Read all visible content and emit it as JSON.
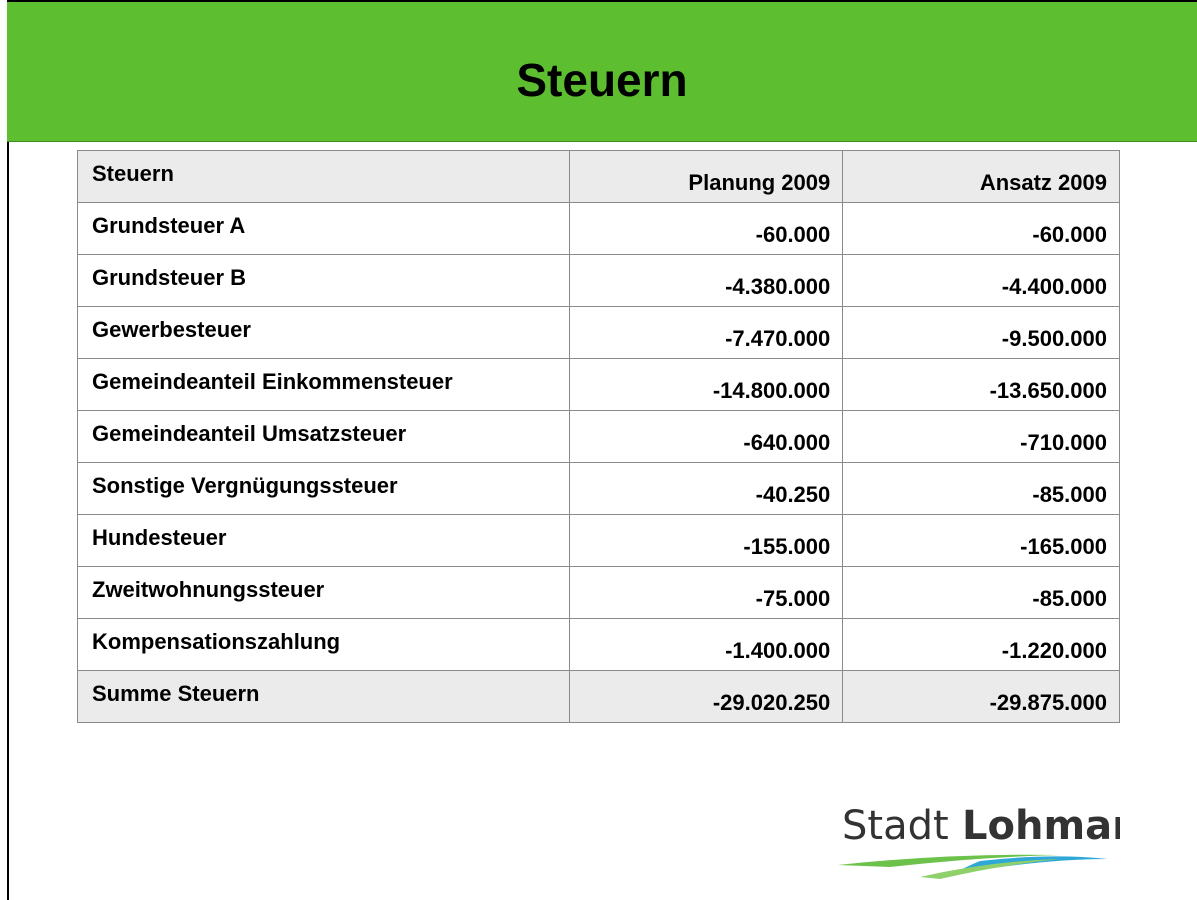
{
  "header": {
    "title": "Steuern"
  },
  "table": {
    "columns": [
      "Steuern",
      "Planung 2009",
      "Ansatz 2009"
    ],
    "rows": [
      [
        "Grundsteuer A",
        "-60.000",
        "-60.000"
      ],
      [
        "Grundsteuer B",
        "-4.380.000",
        "-4.400.000"
      ],
      [
        "Gewerbesteuer",
        "-7.470.000",
        "-9.500.000"
      ],
      [
        "Gemeindeanteil Einkommensteuer",
        "-14.800.000",
        "-13.650.000"
      ],
      [
        "Gemeindeanteil Umsatzsteuer",
        "-640.000",
        "-710.000"
      ],
      [
        "Sonstige Vergnügungssteuer",
        "-40.250",
        "-85.000"
      ],
      [
        "Hundesteuer",
        "-155.000",
        "-165.000"
      ],
      [
        "Zweitwohnungssteuer",
        "-75.000",
        "-85.000"
      ],
      [
        "Kompensationszahlung",
        "-1.400.000",
        "-1.220.000"
      ],
      [
        "Summe Steuern",
        "-29.020.250",
        "-29.875.000"
      ]
    ]
  },
  "logo": {
    "text1": "Stadt",
    "text2": "Lohmar"
  }
}
